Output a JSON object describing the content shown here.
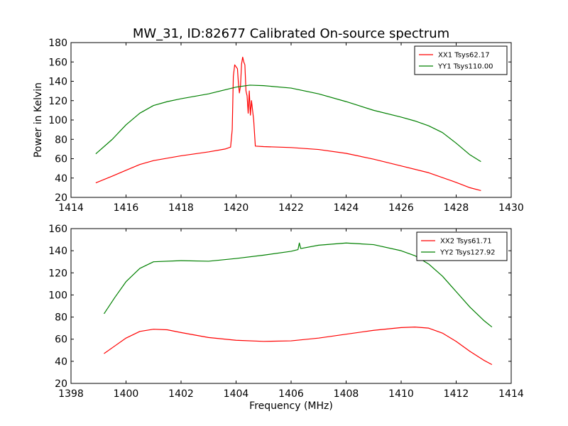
{
  "figure": {
    "title": "MW_31, ID:82677 Calibrated On-source spectrum",
    "ylabel": "Power in Kelvin",
    "xlabel": "Frequency (MHz)"
  },
  "chart_data": [
    {
      "type": "line",
      "title": "MW_31, ID:82677 Calibrated On-source spectrum",
      "xlabel": "",
      "ylabel": "Power in Kelvin",
      "xlim": [
        1414,
        1430
      ],
      "ylim": [
        20,
        180
      ],
      "xticks": [
        1414,
        1416,
        1418,
        1420,
        1422,
        1424,
        1426,
        1428,
        1430
      ],
      "yticks": [
        20,
        40,
        60,
        80,
        100,
        120,
        140,
        160,
        180
      ],
      "grid": false,
      "legend_position": "top-right",
      "series": [
        {
          "name": "XX1 Tsys62.17",
          "color": "#ff0000",
          "x": [
            1414.9,
            1415.5,
            1416.0,
            1416.5,
            1417.0,
            1418.0,
            1419.0,
            1419.6,
            1419.8,
            1419.86,
            1419.9,
            1419.95,
            1420.0,
            1420.05,
            1420.08,
            1420.12,
            1420.16,
            1420.2,
            1420.24,
            1420.28,
            1420.32,
            1420.36,
            1420.4,
            1420.44,
            1420.48,
            1420.52,
            1420.56,
            1420.6,
            1420.64,
            1420.7,
            1421.0,
            1422.0,
            1423.0,
            1424.0,
            1425.0,
            1426.0,
            1427.0,
            1428.0,
            1428.5,
            1428.9
          ],
          "y": [
            35,
            42,
            48,
            54,
            58,
            63,
            67,
            70,
            72,
            90,
            145,
            157,
            155,
            153,
            140,
            128,
            135,
            158,
            165,
            160,
            157,
            130,
            125,
            107,
            130,
            105,
            120,
            110,
            100,
            73,
            72.5,
            71.5,
            69.5,
            65.5,
            59.5,
            52.5,
            45.5,
            35.5,
            30,
            27
          ]
        },
        {
          "name": "YY1 Tsys110.00",
          "color": "#008000",
          "x": [
            1414.9,
            1415.5,
            1416.0,
            1416.5,
            1417.0,
            1417.5,
            1418.0,
            1419.0,
            1420.0,
            1420.5,
            1421.0,
            1422.0,
            1423.0,
            1424.0,
            1425.0,
            1426.0,
            1426.5,
            1427.0,
            1427.5,
            1428.0,
            1428.5,
            1428.9
          ],
          "y": [
            65,
            80,
            95,
            107,
            115,
            119,
            122,
            127,
            134,
            136,
            135.5,
            133,
            127,
            119,
            110,
            103,
            99,
            94,
            87,
            76,
            64,
            57
          ]
        }
      ]
    },
    {
      "type": "line",
      "title": "",
      "xlabel": "Frequency (MHz)",
      "ylabel": "",
      "xlim": [
        1398,
        1414
      ],
      "ylim": [
        20,
        160
      ],
      "xticks": [
        1398,
        1400,
        1402,
        1404,
        1406,
        1408,
        1410,
        1412,
        1414
      ],
      "yticks": [
        20,
        40,
        60,
        80,
        100,
        120,
        140,
        160
      ],
      "grid": false,
      "legend_position": "top-right",
      "series": [
        {
          "name": "XX2 Tsys61.71",
          "color": "#ff0000",
          "x": [
            1399.2,
            1399.6,
            1400.0,
            1400.5,
            1401.0,
            1401.5,
            1402.0,
            1403.0,
            1404.0,
            1405.0,
            1406.0,
            1407.0,
            1408.0,
            1409.0,
            1410.0,
            1410.5,
            1411.0,
            1411.5,
            1412.0,
            1412.5,
            1413.0,
            1413.3
          ],
          "y": [
            47,
            54,
            61,
            67,
            69,
            68.5,
            66,
            61.5,
            59,
            58,
            58.5,
            61,
            64.5,
            68,
            70.5,
            71,
            70,
            65.5,
            58,
            49,
            41,
            37
          ]
        },
        {
          "name": "YY2 Tsys127.92",
          "color": "#008000",
          "x": [
            1399.2,
            1399.6,
            1400.0,
            1400.5,
            1401.0,
            1402.0,
            1403.0,
            1404.0,
            1405.0,
            1406.0,
            1406.25,
            1406.3,
            1406.35,
            1407.0,
            1408.0,
            1409.0,
            1410.0,
            1410.5,
            1411.0,
            1411.5,
            1412.0,
            1412.5,
            1413.0,
            1413.3
          ],
          "y": [
            83,
            98,
            112,
            124,
            130,
            131,
            130.5,
            133,
            136,
            139.5,
            141,
            147,
            142,
            145,
            147,
            145.5,
            140,
            135.5,
            128,
            117,
            103,
            89,
            77,
            71
          ]
        }
      ]
    }
  ]
}
